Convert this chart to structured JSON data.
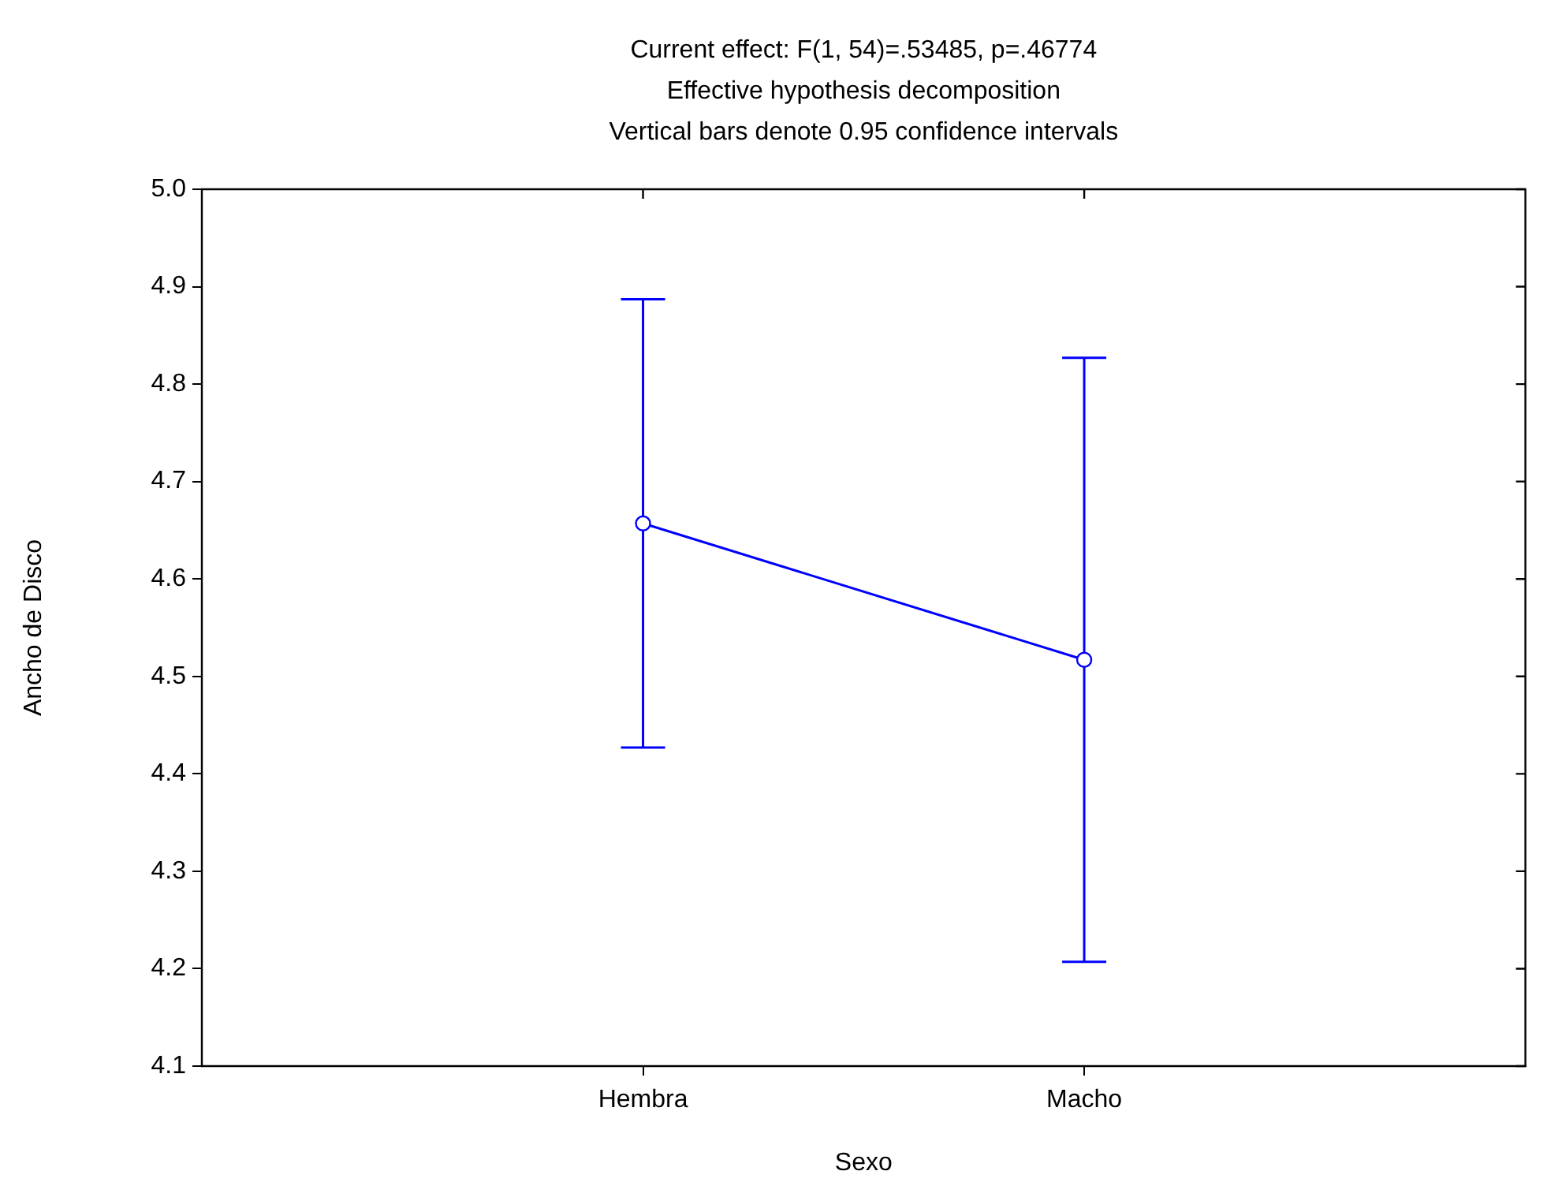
{
  "chart_data": {
    "type": "line",
    "title": "Current effect: F(1, 54)=.53485, p=.46774",
    "subtitle": "Effective hypothesis decomposition",
    "annotations": [
      "Vertical bars denote 0.95 confidence intervals"
    ],
    "xlabel": "Sexo",
    "ylabel": "Ancho de Disco",
    "categories": [
      "Hembra",
      "Macho"
    ],
    "series": [
      {
        "color": "#0000ff",
        "values": [
          4.657,
          4.517
        ],
        "errors": [
          0.23,
          0.31
        ]
      }
    ],
    "ylim": [
      4.1,
      5.0
    ],
    "yticks": [
      {
        "value": 4.1,
        "label": "4.1"
      },
      {
        "value": 4.2,
        "label": "4.2"
      },
      {
        "value": 4.3,
        "label": "4.3"
      },
      {
        "value": 4.4,
        "label": "4.4"
      },
      {
        "value": 4.5,
        "label": "4.5"
      },
      {
        "value": 4.6,
        "label": "4.6"
      },
      {
        "value": 4.7,
        "label": "4.7"
      },
      {
        "value": 4.8,
        "label": "4.8"
      },
      {
        "value": 4.9,
        "label": "4.9"
      },
      {
        "value": 5.0,
        "label": "5.0"
      }
    ],
    "grid": false,
    "legend": false,
    "marker": "circle",
    "line_style": "solid"
  }
}
